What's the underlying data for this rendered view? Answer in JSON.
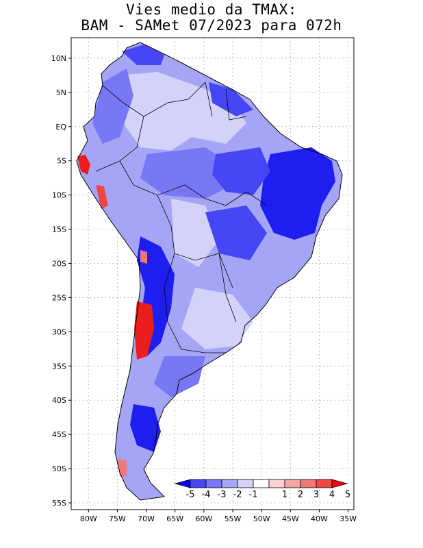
{
  "title": {
    "line1": "Vies medio da TMAX:",
    "line2": "BAM - SAMet 07/2023  para 072h"
  },
  "map": {
    "lat_ticks": [
      "10N",
      "5N",
      "EQ",
      "5S",
      "10S",
      "15S",
      "20S",
      "25S",
      "30S",
      "35S",
      "40S",
      "45S",
      "50S",
      "55S"
    ],
    "lat_values": [
      10,
      5,
      0,
      -5,
      -10,
      -15,
      -20,
      -25,
      -30,
      -35,
      -40,
      -45,
      -50,
      -55
    ],
    "lon_ticks": [
      "80W",
      "75W",
      "70W",
      "65W",
      "60W",
      "55W",
      "50W",
      "45W",
      "40W",
      "35W"
    ],
    "lon_values": [
      -80,
      -75,
      -70,
      -65,
      -60,
      -55,
      -50,
      -45,
      -40,
      -35
    ],
    "lat_range": [
      -56,
      13
    ],
    "lon_range": [
      -83,
      -34
    ],
    "gridlines": "dotted"
  },
  "colorbar": {
    "labels": [
      "-5",
      "-4",
      "-3",
      "-2",
      "-1",
      "1",
      "2",
      "3",
      "4",
      "5"
    ],
    "bins": [
      -5,
      -4,
      -3,
      -2,
      -1,
      1,
      2,
      3,
      4,
      5
    ],
    "colors": [
      "#1e1ef0",
      "#4646f5",
      "#7878f5",
      "#a5a5f5",
      "#d2d2fa",
      "#ffffff",
      "#fad2d2",
      "#f5a5a5",
      "#f07878",
      "#f04646",
      "#eb1e1e"
    ],
    "arrow_low_color": "#0000ff",
    "arrow_high_color": "#ff0000"
  }
}
